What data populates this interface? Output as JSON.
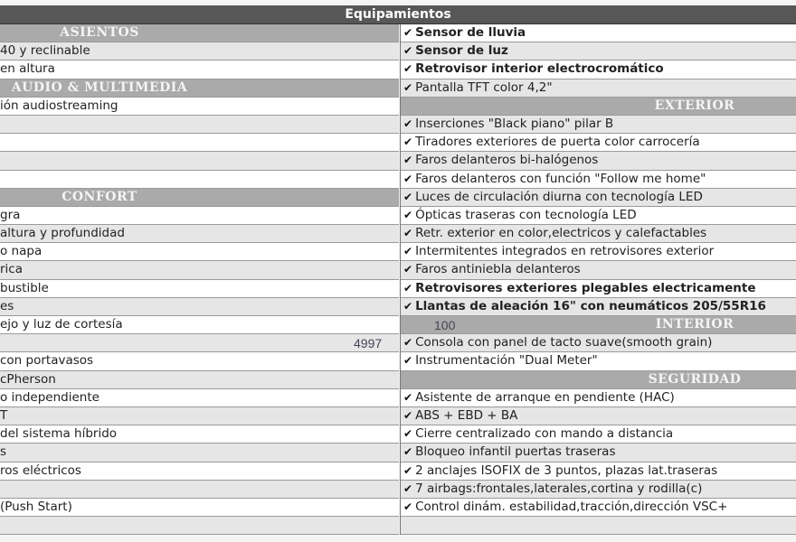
{
  "title": "Equipamientos",
  "check_icon": "check-mark-icon",
  "colors": {
    "title_bar": "#575757",
    "section_header": "#aaaaaa",
    "row_even": "#ffffff",
    "row_odd": "#e6e6e6"
  },
  "left_rows": [
    {
      "type": "header",
      "text": "ASIENTOS"
    },
    {
      "text": "40 y reclinable"
    },
    {
      "text": "en altura"
    },
    {
      "type": "header",
      "text": "AUDIO & MULTIMEDIA"
    },
    {
      "text": "ión audiostreaming"
    },
    {
      "text": ""
    },
    {
      "text": ""
    },
    {
      "text": ""
    },
    {
      "text": ""
    },
    {
      "type": "header",
      "text": "CONFORT"
    },
    {
      "text": "gra"
    },
    {
      "text": "altura y profundidad"
    },
    {
      "text": "o napa"
    },
    {
      "text": "rica"
    },
    {
      "text": "bustible"
    },
    {
      "text": "es"
    },
    {
      "text": "ejo y luz de cortesía"
    },
    {
      "text": ""
    },
    {
      "text": "con portavasos"
    },
    {
      "text": "cPherson"
    },
    {
      "text": "o independiente"
    },
    {
      "text": "T"
    },
    {
      "text": "del sistema híbrido"
    },
    {
      "text": "s"
    },
    {
      "text": "ros eléctricos"
    },
    {
      "text": ""
    },
    {
      "text": " (Push Start)"
    },
    {
      "text": ""
    }
  ],
  "right_rows": [
    {
      "text": "Sensor de lluvia",
      "bold": true,
      "check": true
    },
    {
      "text": "Sensor de luz",
      "bold": true,
      "check": true
    },
    {
      "text": "Retrovisor interior electrocromático",
      "bold": true,
      "check": true
    },
    {
      "text": "Pantalla TFT color 4,2\"",
      "check": true
    },
    {
      "type": "header",
      "text": "EXTERIOR"
    },
    {
      "text": "Inserciones \"Black piano\" pilar B",
      "check": true
    },
    {
      "text": "Tiradores exteriores de puerta color carrocería",
      "check": true
    },
    {
      "text": "Faros delanteros bi-halógenos",
      "check": true
    },
    {
      "text": "Faros delanteros con función \"Follow me home\"",
      "check": true
    },
    {
      "text": "Luces de circulación diurna con tecnología LED",
      "check": true
    },
    {
      "text": "Ópticas traseras con tecnología LED",
      "check": true
    },
    {
      "text": "Retr. exterior en color,electricos y calefactables",
      "check": true
    },
    {
      "text": "Intermitentes integrados en retrovisores exterior",
      "check": true
    },
    {
      "text": "Faros antiniebla delanteros",
      "check": true
    },
    {
      "text": "Retrovisores exteriores plegables electricamente",
      "bold": true,
      "check": true
    },
    {
      "text": "Llantas de aleación 16\" con neumáticos 205/55R16",
      "bold": true,
      "check": true
    },
    {
      "type": "header",
      "text": "INTERIOR"
    },
    {
      "text": "Consola con panel de tacto suave(smooth grain)",
      "check": true
    },
    {
      "text": "Instrumentación \"Dual Meter\"",
      "check": true
    },
    {
      "type": "header",
      "text": "SEGURIDAD"
    },
    {
      "text": "Asistente de arranque en pendiente (HAC)",
      "check": true
    },
    {
      "text": "ABS + EBD + BA",
      "check": true
    },
    {
      "text": "Cierre centralizado con mando a distancia",
      "check": true
    },
    {
      "text": "Bloqueo infantil puertas traseras",
      "check": true
    },
    {
      "text": "2 anclajes ISOFIX de 3 puntos, plazas lat.traseras",
      "check": true
    },
    {
      "text": "7 airbags:frontales,laterales,cortina y rodilla(c)",
      "check": true
    },
    {
      "text": "Control dinám. estabilidad,tracción,dirección VSC+",
      "check": true
    },
    {
      "text": ""
    }
  ],
  "watermark": {
    "number_a": "4997",
    "number_b": "100"
  }
}
